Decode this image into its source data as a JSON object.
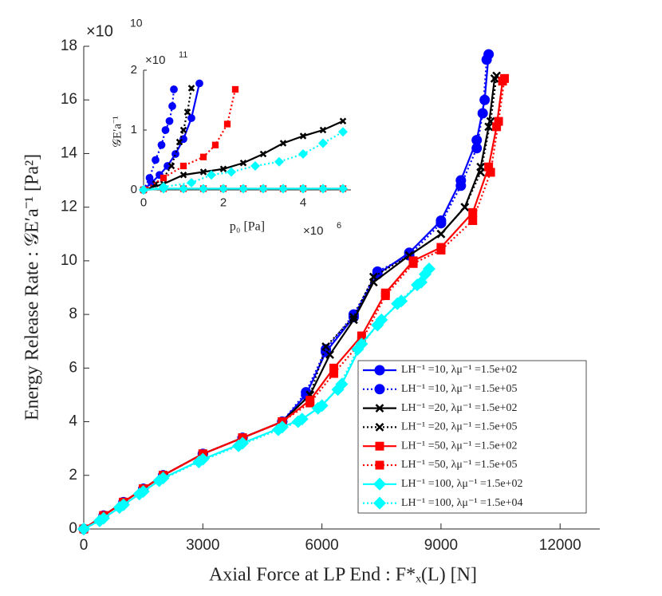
{
  "chart_data": [
    {
      "type": "line",
      "xlabel": "Axial Force at LP End :  F*ₓ(L) [N]",
      "ylabel": "Energy Release Rate :  𝒢E′a⁻¹ [Pa²]",
      "y_exponent": {
        "base": "×10",
        "power": "10"
      },
      "xlim": [
        0,
        13000
      ],
      "xticks": [
        0,
        3000,
        6000,
        9000,
        12000
      ],
      "ylim": [
        0,
        18
      ],
      "yticks": [
        0,
        2,
        4,
        6,
        8,
        10,
        12,
        14,
        16,
        18
      ],
      "legend": "lower right",
      "series": [
        {
          "name": "LH⁻¹ =10,  λμ⁻¹ =1.5e+02",
          "color": "#0000ff",
          "line_style": "solid",
          "marker": "circle",
          "x": [
            0,
            500,
            1000,
            1500,
            2000,
            3000,
            4000,
            5000,
            5600,
            6100,
            6800,
            7400,
            8200,
            9000,
            9500,
            9900,
            10100,
            10200
          ],
          "values": [
            0,
            0.5,
            1.0,
            1.5,
            2.0,
            2.8,
            3.4,
            4.0,
            5.0,
            6.6,
            7.9,
            9.5,
            10.3,
            11.5,
            13.0,
            14.5,
            16.0,
            17.7
          ]
        },
        {
          "name": "LH⁻¹ =10,  λμ⁻¹ =1.5e+05",
          "color": "#0000ff",
          "line_style": "dotted",
          "marker": "circle",
          "x": [
            0,
            500,
            1000,
            1500,
            2000,
            3000,
            4000,
            5000,
            5600,
            6100,
            6800,
            7400,
            8200,
            9000,
            9500,
            9900,
            10050,
            10150
          ],
          "values": [
            0,
            0.5,
            1,
            1.5,
            2,
            2.8,
            3.4,
            4,
            5.1,
            6.7,
            8,
            9.6,
            10.2,
            11.4,
            12.8,
            14.2,
            15.5,
            17.5
          ]
        },
        {
          "name": "LH⁻¹ =20,  λμ⁻¹ =1.5e+02",
          "color": "#000000",
          "line_style": "solid",
          "marker": "x",
          "x": [
            0,
            500,
            1000,
            1500,
            2000,
            3000,
            4000,
            5000,
            5700,
            6200,
            6800,
            7300,
            8200,
            9000,
            9600,
            10000,
            10200,
            10350
          ],
          "values": [
            0,
            0.5,
            1,
            1.5,
            2,
            2.8,
            3.4,
            4,
            5,
            6.5,
            7.8,
            9.2,
            10.2,
            11,
            12,
            13.5,
            15,
            16.8
          ]
        },
        {
          "name": "LH⁻¹ =20,  λμ⁻¹ =1.5e+05",
          "color": "#000000",
          "line_style": "dotted",
          "marker": "x",
          "x": [
            0,
            500,
            1000,
            1500,
            2000,
            3000,
            4000,
            5000,
            5700,
            6100,
            6800,
            7300,
            8200,
            9000,
            9600,
            10000,
            10250,
            10400
          ],
          "values": [
            0,
            0.5,
            1,
            1.5,
            2,
            2.8,
            3.4,
            4,
            5,
            6.8,
            7.9,
            9.4,
            10.2,
            11,
            12,
            13.3,
            15.2,
            16.9
          ]
        },
        {
          "name": "LH⁻¹ =50,  λμ⁻¹ =1.5e+02",
          "color": "#ff0000",
          "line_style": "solid",
          "marker": "square",
          "x": [
            0,
            500,
            1000,
            1500,
            2000,
            3000,
            4000,
            5000,
            5700,
            6300,
            7000,
            7600,
            8300,
            9000,
            9800,
            10200,
            10400,
            10550
          ],
          "values": [
            0,
            0.5,
            1,
            1.5,
            2,
            2.8,
            3.4,
            4,
            4.8,
            6,
            7.2,
            8.8,
            10,
            10.5,
            11.8,
            13.5,
            15,
            16.7
          ]
        },
        {
          "name": "LH⁻¹ =50,  λμ⁻¹ =1.5e+05",
          "color": "#ff0000",
          "line_style": "dotted",
          "marker": "square",
          "x": [
            0,
            500,
            1000,
            1500,
            2000,
            3000,
            4000,
            5000,
            5700,
            6300,
            7000,
            7600,
            8300,
            9000,
            9800,
            10250,
            10450,
            10600
          ],
          "values": [
            0,
            0.5,
            1,
            1.5,
            2,
            2.8,
            3.4,
            4,
            4.7,
            5.8,
            7,
            8.7,
            9.9,
            10.4,
            11.5,
            13.3,
            15.2,
            16.8
          ]
        },
        {
          "name": "LH⁻¹ =100,  λμ⁻¹ =1.5e+02",
          "color": "#00ffff",
          "line_style": "solid",
          "marker": "diamond",
          "x": [
            0,
            500,
            1000,
            1500,
            2000,
            3000,
            4000,
            5000,
            5500,
            6000,
            6500,
            7000,
            7500,
            8000,
            8500,
            8700
          ],
          "values": [
            0,
            0.4,
            0.9,
            1.4,
            1.9,
            2.6,
            3.2,
            3.8,
            4.1,
            4.6,
            5.4,
            6.9,
            7.8,
            8.5,
            9.2,
            9.7
          ]
        },
        {
          "name": "LH⁻¹ =100,  λμ⁻¹ =1.5e+04",
          "color": "#00ffff",
          "line_style": "dotted",
          "marker": "diamond",
          "x": [
            0,
            400,
            900,
            1400,
            1900,
            2900,
            3900,
            4900,
            5400,
            5900,
            6400,
            6900,
            7400,
            7900,
            8400,
            8600
          ],
          "values": [
            0,
            0.3,
            0.8,
            1.3,
            1.8,
            2.5,
            3.1,
            3.7,
            4.0,
            4.5,
            5.2,
            6.7,
            7.6,
            8.4,
            9.1,
            9.5
          ]
        }
      ]
    },
    {
      "type": "line",
      "xlabel": "p₀ [Pa]",
      "ylabel": "𝒢E′a⁻¹",
      "x_exponent": {
        "base": "×10",
        "power": "6"
      },
      "y_exponent": {
        "base": "×10",
        "power": "11"
      },
      "xlim": [
        0,
        5.2
      ],
      "xticks": [
        0,
        2,
        4
      ],
      "ylim": [
        0,
        2
      ],
      "yticks": [
        0,
        1,
        2
      ],
      "series": [
        {
          "color": "#0000ff",
          "line_style": "solid",
          "marker": "circle",
          "x": [
            0,
            0.2,
            0.4,
            0.6,
            0.8,
            1.0,
            1.2,
            1.4
          ],
          "values": [
            0,
            0.12,
            0.25,
            0.4,
            0.6,
            0.85,
            1.2,
            1.78
          ]
        },
        {
          "color": "#0000ff",
          "line_style": "dotted",
          "marker": "circle",
          "x": [
            0,
            0.15,
            0.3,
            0.45,
            0.55,
            0.65,
            0.72,
            0.76
          ],
          "values": [
            0,
            0.2,
            0.5,
            0.75,
            1.0,
            1.15,
            1.4,
            1.68
          ]
        },
        {
          "color": "#000000",
          "line_style": "solid",
          "marker": "x",
          "x": [
            0,
            0.5,
            1,
            1.5,
            2,
            2.5,
            3,
            3.5,
            4,
            4.5,
            5
          ],
          "values": [
            0,
            0.1,
            0.25,
            0.3,
            0.35,
            0.45,
            0.6,
            0.78,
            0.9,
            1.0,
            1.15
          ]
        },
        {
          "color": "#000000",
          "line_style": "dotted",
          "marker": "x",
          "x": [
            0,
            0.3,
            0.5,
            0.7,
            0.9,
            1.0,
            1.1,
            1.2
          ],
          "values": [
            0,
            0.1,
            0.2,
            0.4,
            0.8,
            1.0,
            1.3,
            1.7
          ]
        },
        {
          "color": "#ff0000",
          "line_style": "solid",
          "marker": "square",
          "x": [
            0,
            0.5,
            1,
            1.5,
            2,
            2.5,
            3,
            3.5,
            4,
            4.5,
            5
          ],
          "values": [
            0,
            0.02,
            0.02,
            0.02,
            0.02,
            0.02,
            0.02,
            0.02,
            0.02,
            0.02,
            0.02
          ]
        },
        {
          "color": "#ff0000",
          "line_style": "dotted",
          "marker": "square",
          "x": [
            0,
            0.5,
            1,
            1.5,
            1.8,
            2.1,
            2.3
          ],
          "values": [
            0,
            0.2,
            0.4,
            0.55,
            0.75,
            1.1,
            1.68
          ]
        },
        {
          "color": "#00ffff",
          "line_style": "solid",
          "marker": "diamond",
          "x": [
            0,
            0.5,
            1,
            1.5,
            2,
            2.5,
            3,
            3.5,
            4,
            4.5,
            5
          ],
          "values": [
            0,
            0.02,
            0.02,
            0.02,
            0.02,
            0.02,
            0.02,
            0.02,
            0.02,
            0.02,
            0.02
          ]
        },
        {
          "color": "#00ffff",
          "line_style": "dotted",
          "marker": "diamond",
          "x": [
            0,
            0.5,
            1.2,
            1.7,
            2.2,
            2.8,
            3.4,
            4,
            4.5,
            5
          ],
          "values": [
            0,
            0.05,
            0.12,
            0.25,
            0.3,
            0.4,
            0.47,
            0.6,
            0.78,
            0.97
          ]
        }
      ]
    }
  ]
}
